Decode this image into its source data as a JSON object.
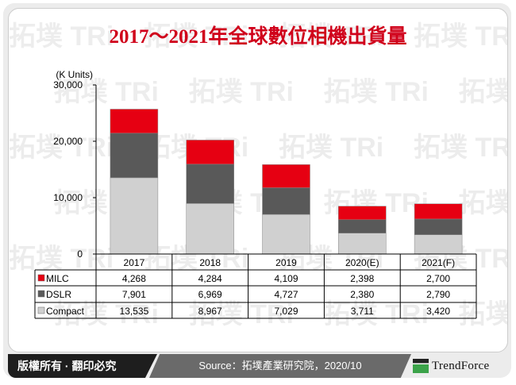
{
  "title": "2017～2021年全球數位相機出貨量",
  "footer": {
    "copyright": "版權所有 · 翻印必究",
    "source": "Source：拓墣產業研究院，2020/10",
    "brand": "TrendForce"
  },
  "watermark": "拓墣 TRi",
  "chart_data": {
    "type": "bar",
    "stacked": true,
    "title": "2017～2021年全球數位相機出貨量",
    "ylabel": "(K Units)",
    "ylim": [
      0,
      30000
    ],
    "yticks": [
      "0",
      "10,000",
      "20,000",
      "30,000"
    ],
    "categories": [
      "2017",
      "2018",
      "2019",
      "2020(E)",
      "2021(F)"
    ],
    "series": [
      {
        "name": "Compact",
        "color": "#d0d0d0",
        "values": [
          13535,
          8967,
          7029,
          3711,
          3420
        ],
        "labels": [
          "13,535",
          "8,967",
          "7,029",
          "3,711",
          "3,420"
        ]
      },
      {
        "name": "DSLR",
        "color": "#595959",
        "values": [
          7901,
          6969,
          4727,
          2380,
          2790
        ],
        "labels": [
          "7,901",
          "6,969",
          "4,727",
          "2,380",
          "2,790"
        ]
      },
      {
        "name": "MILC",
        "color": "#e60012",
        "values": [
          4268,
          4284,
          4109,
          2398,
          2700
        ],
        "labels": [
          "4,268",
          "4,284",
          "4,109",
          "2,398",
          "2,700"
        ]
      }
    ],
    "table_rows": [
      "MILC",
      "DSLR",
      "Compact"
    ],
    "grid": false
  }
}
